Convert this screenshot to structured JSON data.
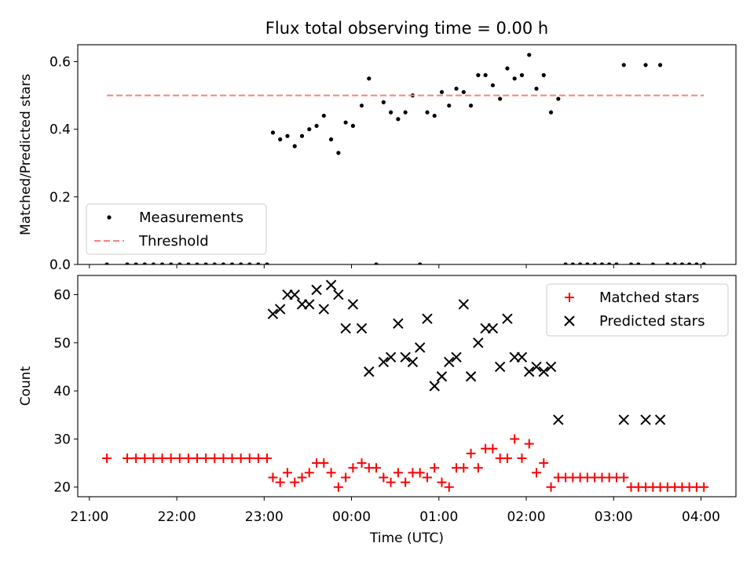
{
  "chart_data": [
    {
      "type": "scatter",
      "title": "Flux total observing time = 0.00 h",
      "xlabel": "",
      "ylabel": "Matched/Predicted stars",
      "ylim": [
        0,
        0.65
      ],
      "yticks": [
        0.0,
        0.2,
        0.4,
        0.6
      ],
      "ytick_labels": [
        "0.0",
        "0.2",
        "0.4",
        "0.6"
      ],
      "xlim": [
        "20:52",
        "04:24"
      ],
      "grid": false,
      "legend": "lower-left",
      "series": [
        {
          "name": "Measurements",
          "kind": "scatter",
          "color": "#000000",
          "x": [
            "21:12",
            "21:26",
            "21:32",
            "21:38",
            "21:44",
            "21:50",
            "21:56",
            "22:02",
            "22:08",
            "22:14",
            "22:20",
            "22:26",
            "22:32",
            "22:38",
            "22:44",
            "22:50",
            "22:56",
            "23:02",
            "23:06",
            "23:11",
            "23:16",
            "23:21",
            "23:26",
            "23:31",
            "23:36",
            "23:41",
            "23:46",
            "23:51",
            "23:56",
            "00:01",
            "00:07",
            "00:12",
            "00:17",
            "00:22",
            "00:27",
            "00:32",
            "00:37",
            "00:42",
            "00:47",
            "00:52",
            "00:57",
            "01:02",
            "01:07",
            "01:12",
            "01:17",
            "01:22",
            "01:27",
            "01:32",
            "01:37",
            "01:42",
            "01:47",
            "01:52",
            "01:57",
            "02:02",
            "02:07",
            "02:12",
            "02:17",
            "02:22",
            "02:27",
            "02:32",
            "02:37",
            "02:42",
            "02:47",
            "02:52",
            "02:57",
            "03:02",
            "03:07",
            "03:12",
            "03:17",
            "03:22",
            "03:27",
            "03:32",
            "03:37",
            "03:42",
            "03:47",
            "03:52",
            "03:57",
            "04:02"
          ],
          "y": [
            0,
            0,
            0,
            0,
            0,
            0,
            0,
            0,
            0,
            0,
            0,
            0,
            0,
            0,
            0,
            0,
            0,
            0,
            0.39,
            0.37,
            0.38,
            0.35,
            0.38,
            0.4,
            0.41,
            0.44,
            0.37,
            0.33,
            0.42,
            0.41,
            0.47,
            0.55,
            0,
            0.48,
            0.45,
            0.43,
            0.45,
            0.5,
            0,
            0.45,
            0.44,
            0.51,
            0.47,
            0.52,
            0.51,
            0.47,
            0.56,
            0.56,
            0.53,
            0.49,
            0.58,
            0.55,
            0.56,
            0.62,
            0.52,
            0.56,
            0.45,
            0.49,
            0,
            0,
            0,
            0,
            0,
            0,
            0,
            0,
            0.59,
            0,
            0,
            0.59,
            0,
            0.59,
            0,
            0,
            0,
            0,
            0,
            0
          ]
        },
        {
          "name": "Threshold",
          "kind": "line",
          "style": "dashed",
          "color": "#ff7f7f",
          "x": [
            "21:12",
            "04:02"
          ],
          "y": [
            0.5,
            0.5
          ]
        }
      ]
    },
    {
      "type": "scatter",
      "title": "",
      "xlabel": "Time (UTC)",
      "ylabel": "Count",
      "ylim": [
        18,
        64
      ],
      "yticks": [
        20,
        30,
        40,
        50,
        60
      ],
      "ytick_labels": [
        "20",
        "30",
        "40",
        "50",
        "60"
      ],
      "xlim": [
        "20:52",
        "04:24"
      ],
      "xticks": [
        "21:00",
        "22:00",
        "23:00",
        "00:00",
        "01:00",
        "02:00",
        "03:00",
        "04:00"
      ],
      "xtick_labels": [
        "21:00",
        "22:00",
        "23:00",
        "00:00",
        "01:00",
        "02:00",
        "03:00",
        "04:00"
      ],
      "grid": false,
      "legend": "upper-right",
      "series": [
        {
          "name": "Matched stars",
          "marker": "plus",
          "color": "#ff0000",
          "x": [
            "21:12",
            "21:26",
            "21:32",
            "21:38",
            "21:44",
            "21:50",
            "21:56",
            "22:02",
            "22:08",
            "22:14",
            "22:20",
            "22:26",
            "22:32",
            "22:38",
            "22:44",
            "22:50",
            "22:56",
            "23:02",
            "23:06",
            "23:11",
            "23:16",
            "23:21",
            "23:26",
            "23:31",
            "23:36",
            "23:41",
            "23:46",
            "23:51",
            "23:56",
            "00:01",
            "00:07",
            "00:12",
            "00:17",
            "00:22",
            "00:27",
            "00:32",
            "00:37",
            "00:42",
            "00:47",
            "00:52",
            "00:57",
            "01:02",
            "01:07",
            "01:12",
            "01:17",
            "01:22",
            "01:27",
            "01:32",
            "01:37",
            "01:42",
            "01:47",
            "01:52",
            "01:57",
            "02:02",
            "02:07",
            "02:12",
            "02:17",
            "02:22",
            "02:27",
            "02:32",
            "02:37",
            "02:42",
            "02:47",
            "02:52",
            "02:57",
            "03:02",
            "03:07",
            "03:12",
            "03:17",
            "03:22",
            "03:27",
            "03:32",
            "03:37",
            "03:42",
            "03:47",
            "03:52",
            "03:57",
            "04:02"
          ],
          "y": [
            26,
            26,
            26,
            26,
            26,
            26,
            26,
            26,
            26,
            26,
            26,
            26,
            26,
            26,
            26,
            26,
            26,
            26,
            22,
            21,
            23,
            21,
            22,
            23,
            25,
            25,
            23,
            20,
            22,
            24,
            25,
            24,
            24,
            22,
            21,
            23,
            21,
            23,
            23,
            22,
            24,
            21,
            20,
            24,
            24,
            27,
            24,
            28,
            28,
            26,
            26,
            30,
            26,
            29,
            23,
            25,
            20,
            22,
            22,
            22,
            22,
            22,
            22,
            22,
            22,
            22,
            22,
            20,
            20,
            20,
            20,
            20,
            20,
            20,
            20,
            20,
            20,
            20
          ]
        },
        {
          "name": "Predicted stars",
          "marker": "x",
          "color": "#000000",
          "x": [
            "23:06",
            "23:11",
            "23:16",
            "23:21",
            "23:26",
            "23:31",
            "23:36",
            "23:41",
            "23:46",
            "23:51",
            "23:56",
            "00:01",
            "00:07",
            "00:12",
            "00:22",
            "00:27",
            "00:32",
            "00:37",
            "00:42",
            "00:47",
            "00:52",
            "00:57",
            "01:02",
            "01:07",
            "01:12",
            "01:17",
            "01:22",
            "01:27",
            "01:32",
            "01:37",
            "01:42",
            "01:47",
            "01:52",
            "01:57",
            "02:02",
            "02:07",
            "02:12",
            "02:17",
            "02:22",
            "03:07",
            "03:22",
            "03:32"
          ],
          "y": [
            56,
            57,
            60,
            60,
            58,
            58,
            61,
            57,
            62,
            60,
            53,
            58,
            53,
            44,
            46,
            47,
            54,
            47,
            46,
            49,
            55,
            41,
            43,
            46,
            47,
            58,
            43,
            50,
            53,
            53,
            45,
            55,
            47,
            47,
            44,
            45,
            44,
            45,
            34,
            34,
            34,
            34
          ]
        }
      ]
    }
  ]
}
